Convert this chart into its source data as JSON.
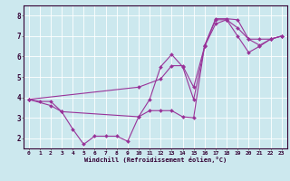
{
  "xlabel": "Windchill (Refroidissement éolien,°C)",
  "background_color": "#cce8ee",
  "line_color": "#993399",
  "grid_color": "#ffffff",
  "xlim": [
    -0.5,
    23.5
  ],
  "ylim": [
    1.5,
    8.5
  ],
  "xticks": [
    0,
    1,
    2,
    3,
    4,
    5,
    6,
    7,
    8,
    9,
    10,
    11,
    12,
    13,
    14,
    15,
    16,
    17,
    18,
    19,
    20,
    21,
    22,
    23
  ],
  "yticks": [
    2,
    3,
    4,
    5,
    6,
    7,
    8
  ],
  "line1_x": [
    0,
    1,
    2,
    3,
    4,
    5,
    6,
    7,
    8,
    9,
    10,
    11,
    12,
    13,
    14,
    15,
    16,
    17,
    18,
    19,
    20,
    21,
    22,
    23
  ],
  "line1_y": [
    3.9,
    3.8,
    3.8,
    3.3,
    2.45,
    1.7,
    2.1,
    2.1,
    2.1,
    1.85,
    3.05,
    3.35,
    3.35,
    3.35,
    3.05,
    3.0,
    6.55,
    7.85,
    7.85,
    7.8,
    6.85,
    6.85,
    6.85,
    7.0
  ],
  "line2_x": [
    0,
    2,
    3,
    10,
    11,
    12,
    13,
    14,
    15,
    16,
    17,
    18,
    19,
    20,
    21,
    22,
    23
  ],
  "line2_y": [
    3.9,
    3.6,
    3.3,
    3.05,
    3.9,
    5.5,
    6.1,
    5.5,
    3.9,
    6.5,
    7.6,
    7.8,
    7.0,
    6.2,
    6.5,
    6.85,
    7.0
  ],
  "line3_x": [
    0,
    10,
    12,
    13,
    14,
    15,
    16,
    17,
    18,
    19,
    20,
    21,
    22,
    23
  ],
  "line3_y": [
    3.9,
    4.5,
    4.9,
    5.55,
    5.55,
    4.5,
    6.5,
    7.8,
    7.8,
    7.4,
    6.85,
    6.55,
    6.85,
    7.0
  ]
}
